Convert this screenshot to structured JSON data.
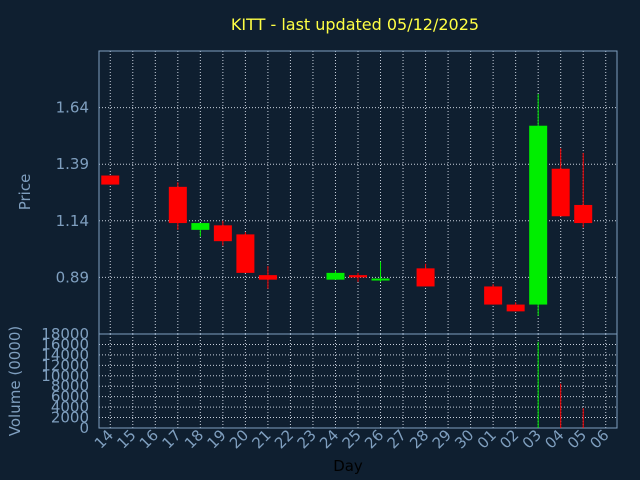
{
  "chart_data": [
    {
      "type": "candlestick",
      "title": "KITT - last updated 05/12/2025",
      "ylabel": "Price",
      "yticks": [
        "0.89",
        "1.14",
        "1.39",
        "1.64"
      ],
      "ylim": [
        0.64,
        1.89
      ],
      "grid": true,
      "categories": [
        "14",
        "15",
        "16",
        "17",
        "18",
        "19",
        "20",
        "21",
        "22",
        "23",
        "24",
        "25",
        "26",
        "27",
        "28",
        "29",
        "30",
        "01",
        "02",
        "03",
        "04",
        "05",
        "06"
      ],
      "candles": [
        {
          "day": "14",
          "open": 1.34,
          "high": 1.34,
          "low": 1.3,
          "close": 1.3
        },
        {
          "day": "17",
          "open": 1.29,
          "high": 1.31,
          "low": 1.1,
          "close": 1.13
        },
        {
          "day": "18",
          "open": 1.1,
          "high": 1.13,
          "low": 1.07,
          "close": 1.13
        },
        {
          "day": "19",
          "open": 1.12,
          "high": 1.14,
          "low": 1.03,
          "close": 1.05
        },
        {
          "day": "20",
          "open": 1.08,
          "high": 1.09,
          "low": 0.91,
          "close": 0.91
        },
        {
          "day": "21",
          "open": 0.9,
          "high": 0.94,
          "low": 0.84,
          "close": 0.88
        },
        {
          "day": "24",
          "open": 0.88,
          "high": 0.92,
          "low": 0.88,
          "close": 0.91
        },
        {
          "day": "25",
          "open": 0.9,
          "high": 0.91,
          "low": 0.87,
          "close": 0.89
        },
        {
          "day": "26",
          "open": 0.88,
          "high": 0.96,
          "low": 0.87,
          "close": 0.885
        },
        {
          "day": "28",
          "open": 0.93,
          "high": 0.95,
          "low": 0.85,
          "close": 0.85
        },
        {
          "day": "01",
          "open": 0.85,
          "high": 0.86,
          "low": 0.77,
          "close": 0.77
        },
        {
          "day": "02",
          "open": 0.77,
          "high": 0.78,
          "low": 0.74,
          "close": 0.74
        },
        {
          "day": "03",
          "open": 0.77,
          "high": 1.7,
          "low": 0.72,
          "close": 1.56
        },
        {
          "day": "04",
          "open": 1.37,
          "high": 1.46,
          "low": 1.16,
          "close": 1.16
        },
        {
          "day": "05",
          "open": 1.21,
          "high": 1.44,
          "low": 1.11,
          "close": 1.13
        }
      ],
      "up_color": "#00ee00",
      "down_color": "#ff0000"
    },
    {
      "type": "bar",
      "ylabel": "Volume (0000)",
      "xlabel": "Day",
      "ylim": [
        0,
        18000
      ],
      "yticks": [
        "0",
        "2000",
        "4000",
        "6000",
        "8000",
        "10000",
        "12000",
        "14000",
        "16000",
        "18000"
      ],
      "categories": [
        "14",
        "15",
        "16",
        "17",
        "18",
        "19",
        "20",
        "21",
        "22",
        "23",
        "24",
        "25",
        "26",
        "27",
        "28",
        "29",
        "30",
        "01",
        "02",
        "03",
        "04",
        "05",
        "06"
      ],
      "bars": [
        {
          "day": "03",
          "value": 16500,
          "color": "#00ee00"
        },
        {
          "day": "04",
          "value": 8500,
          "color": "#ff0000"
        },
        {
          "day": "05",
          "value": 3800,
          "color": "#ff0000"
        }
      ]
    }
  ],
  "colors": {
    "background": "#0f1f30",
    "frame": "#7f9fbf",
    "grid": "#c8d0dc",
    "title": "#ffff44"
  }
}
